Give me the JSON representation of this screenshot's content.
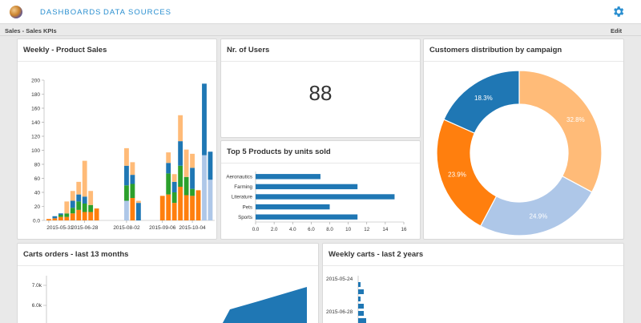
{
  "topbar": {
    "logo": "globe-logo",
    "nav": [
      "DASHBOARDS",
      "DATA SOURCES"
    ],
    "settings_icon": "gear-icon"
  },
  "subbar": {
    "breadcrumb": "Sales - Sales KPIs",
    "edit_label": "Edit"
  },
  "colors": {
    "blue": "#1f77b4",
    "orange": "#ff7f0e",
    "green": "#2ca02c",
    "light_orange": "#ffbb78",
    "light_blue": "#aec7e8",
    "accent": "#2a8fd0"
  },
  "panels": {
    "weekly_sales": {
      "title": "Weekly - Product Sales",
      "chart_data": {
        "type": "bar",
        "stacked": true,
        "x_tick_labels": [
          "2015-05-31",
          "2015-06-28",
          "2015-08-02",
          "2015-09-06",
          "2015-10-04"
        ],
        "ylim": [
          0,
          200
        ],
        "y_ticks": [
          "0.0",
          "20",
          "40",
          "60",
          "80",
          "100",
          "120",
          "140",
          "160",
          "180",
          "200"
        ],
        "series_colors": [
          "#aec7e8",
          "#ff7f0e",
          "#2ca02c",
          "#1f77b4",
          "#ffbb78"
        ],
        "bars": [
          [
            0,
            2,
            0,
            0,
            0
          ],
          [
            0,
            3,
            0,
            3,
            0
          ],
          [
            0,
            5,
            3,
            2,
            0
          ],
          [
            0,
            5,
            5,
            0,
            17
          ],
          [
            0,
            10,
            8,
            10,
            14
          ],
          [
            0,
            15,
            12,
            10,
            18
          ],
          [
            0,
            12,
            12,
            10,
            51
          ],
          [
            0,
            12,
            10,
            0,
            20
          ],
          [
            0,
            17,
            0,
            0,
            0
          ],
          [
            0,
            0,
            0,
            0,
            0
          ],
          [
            0,
            0,
            0,
            0,
            0
          ],
          [
            0,
            0,
            0,
            0,
            0
          ],
          [
            0,
            0,
            0,
            0,
            0
          ],
          [
            28,
            0,
            22,
            28,
            25
          ],
          [
            0,
            32,
            20,
            13,
            18
          ],
          [
            0,
            0,
            0,
            25,
            3
          ],
          [
            0,
            0,
            0,
            0,
            0
          ],
          [
            0,
            0,
            0,
            0,
            0
          ],
          [
            0,
            0,
            0,
            0,
            0
          ],
          [
            0,
            35,
            0,
            0,
            0
          ],
          [
            0,
            37,
            30,
            15,
            15
          ],
          [
            0,
            25,
            15,
            15,
            11
          ],
          [
            0,
            48,
            30,
            35,
            37
          ],
          [
            0,
            36,
            26,
            0,
            39
          ],
          [
            0,
            35,
            10,
            30,
            20
          ],
          [
            0,
            43,
            0,
            0,
            0
          ],
          [
            93,
            0,
            0,
            102,
            0
          ],
          [
            58,
            0,
            0,
            40,
            0
          ]
        ]
      }
    },
    "users": {
      "title": "Nr. of Users",
      "value": "88"
    },
    "top5": {
      "title": "Top 5 Products by units sold",
      "chart_data": {
        "type": "bar",
        "orientation": "horizontal",
        "categories": [
          "Aeronautics",
          "Farming",
          "Literature",
          "Pets",
          "Sports"
        ],
        "values": [
          7,
          11,
          15,
          8,
          11
        ],
        "xlim": [
          0,
          16
        ],
        "x_ticks": [
          "0.0",
          "2.0",
          "4.0",
          "6.0",
          "8.0",
          "10",
          "12",
          "14",
          "16"
        ],
        "color": "#1f77b4"
      }
    },
    "customers": {
      "title": "Customers distribution by campaign",
      "chart_data": {
        "type": "pie",
        "donut": true,
        "labels": [
          "32.8%",
          "24.9%",
          "23.9%",
          "18.3%"
        ],
        "values": [
          32.8,
          24.9,
          23.9,
          18.3
        ],
        "colors": [
          "#ffbb78",
          "#aec7e8",
          "#ff7f0e",
          "#1f77b4"
        ]
      }
    },
    "carts": {
      "title": "Carts orders - last 13 months",
      "chart_data": {
        "type": "area",
        "y_tick_labels": [
          "7.0k",
          "6.0k"
        ],
        "color": "#1f77b4"
      }
    },
    "weekly_carts": {
      "title": "Weekly carts - last 2 years",
      "chart_data": {
        "type": "bar",
        "orientation": "horizontal",
        "y_tick_labels": [
          "2015-05-24",
          "2015-06-28"
        ],
        "color": "#1f77b4"
      }
    }
  }
}
